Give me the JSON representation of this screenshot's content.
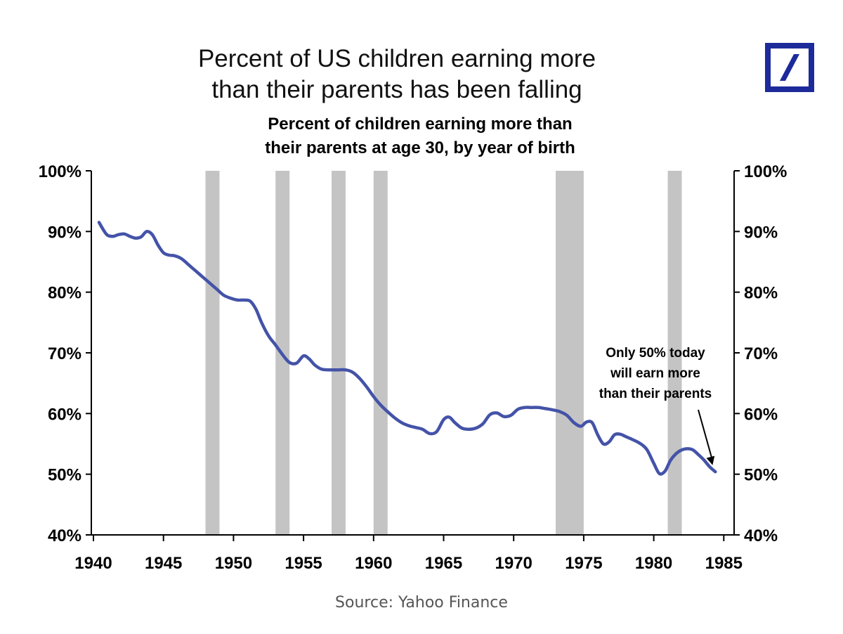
{
  "title_lines": [
    "Percent of US children earning more",
    "than their parents has been falling"
  ],
  "subtitle_lines": [
    "Percent of children earning more than",
    "their parents at age 30, by year of birth"
  ],
  "source": "Source: Yahoo Finance",
  "logo": {
    "icon": "deutsche-bank-logo",
    "color": "#1d2b9a"
  },
  "colors": {
    "line": "#4453a8",
    "recession": "#c4c4c4",
    "axis": "#000000"
  },
  "chart_data": {
    "type": "line",
    "title": "Percent of children earning more than their parents at age 30, by year of birth",
    "xlabel": "",
    "ylabel": "",
    "xlim": [
      1940,
      1985
    ],
    "ylim": [
      40,
      100
    ],
    "x_ticks": [
      1940,
      1945,
      1950,
      1955,
      1960,
      1965,
      1970,
      1975,
      1980,
      1985
    ],
    "y_ticks": [
      40,
      50,
      60,
      70,
      80,
      90,
      100
    ],
    "y_tick_labels": [
      "40%",
      "50%",
      "60%",
      "70%",
      "80%",
      "90%",
      "100%"
    ],
    "y_axis_sides": [
      "left",
      "right"
    ],
    "grid": false,
    "recession_bands": [
      [
        1948,
        1949
      ],
      [
        1953,
        1954
      ],
      [
        1957,
        1958
      ],
      [
        1960,
        1961
      ],
      [
        1973,
        1975
      ],
      [
        1981,
        1982
      ]
    ],
    "series": [
      {
        "x": [
          1940.4,
          1940.7,
          1941.0,
          1941.4,
          1941.8,
          1942.2,
          1942.6,
          1943.0,
          1943.4,
          1943.8,
          1944.2,
          1944.6,
          1945.0,
          1945.4,
          1945.8,
          1946.3,
          1946.8,
          1947.3,
          1947.8,
          1948.3,
          1948.8,
          1949.3,
          1949.8,
          1950.3,
          1950.8,
          1951.2,
          1951.6,
          1952.0,
          1952.5,
          1953.0,
          1953.5,
          1954.0,
          1954.5,
          1955.0,
          1955.4,
          1955.8,
          1956.3,
          1956.8,
          1957.5,
          1958.0,
          1958.5,
          1959.0,
          1959.5,
          1960.0,
          1960.5,
          1961.0,
          1961.5,
          1962.0,
          1962.5,
          1963.0,
          1963.5,
          1964.0,
          1964.5,
          1965.0,
          1965.4,
          1965.8,
          1966.3,
          1966.8,
          1967.3,
          1967.8,
          1968.3,
          1968.8,
          1969.3,
          1969.8,
          1970.3,
          1970.8,
          1971.3,
          1971.8,
          1972.3,
          1972.8,
          1973.3,
          1973.8,
          1974.3,
          1974.8,
          1975.2,
          1975.6,
          1976.0,
          1976.4,
          1976.8,
          1977.2,
          1977.6,
          1978.0,
          1978.5,
          1979.0,
          1979.5,
          1980.0,
          1980.4,
          1980.8,
          1981.2,
          1981.6,
          1982.0,
          1982.4,
          1982.8,
          1983.2,
          1983.6,
          1984.0,
          1984.4
        ],
        "y": [
          91.5,
          90.3,
          89.4,
          89.2,
          89.5,
          89.6,
          89.2,
          88.9,
          89.1,
          90.0,
          89.5,
          87.8,
          86.5,
          86.1,
          86.0,
          85.5,
          84.5,
          83.5,
          82.5,
          81.5,
          80.5,
          79.5,
          79.0,
          78.7,
          78.7,
          78.5,
          77.2,
          75.0,
          72.8,
          71.3,
          69.7,
          68.4,
          68.3,
          69.5,
          69.0,
          68.0,
          67.3,
          67.2,
          67.2,
          67.2,
          66.8,
          65.8,
          64.4,
          62.8,
          61.4,
          60.3,
          59.3,
          58.5,
          58.0,
          57.7,
          57.4,
          56.7,
          57.0,
          59.0,
          59.4,
          58.5,
          57.6,
          57.4,
          57.6,
          58.3,
          59.8,
          60.1,
          59.5,
          59.7,
          60.7,
          61.0,
          61.0,
          61.0,
          60.8,
          60.6,
          60.3,
          59.7,
          58.5,
          57.9,
          58.6,
          58.5,
          56.5,
          55.0,
          55.3,
          56.5,
          56.6,
          56.2,
          55.7,
          55.1,
          54.1,
          51.8,
          50.1,
          50.5,
          52.3,
          53.4,
          54.0,
          54.2,
          54.0,
          53.2,
          52.3,
          51.2,
          50.4
        ]
      }
    ],
    "annotation": {
      "lines": [
        "Only 50% today",
        "will earn more",
        "than their parents"
      ],
      "points_to": [
        1984.2,
        51.5
      ]
    }
  }
}
